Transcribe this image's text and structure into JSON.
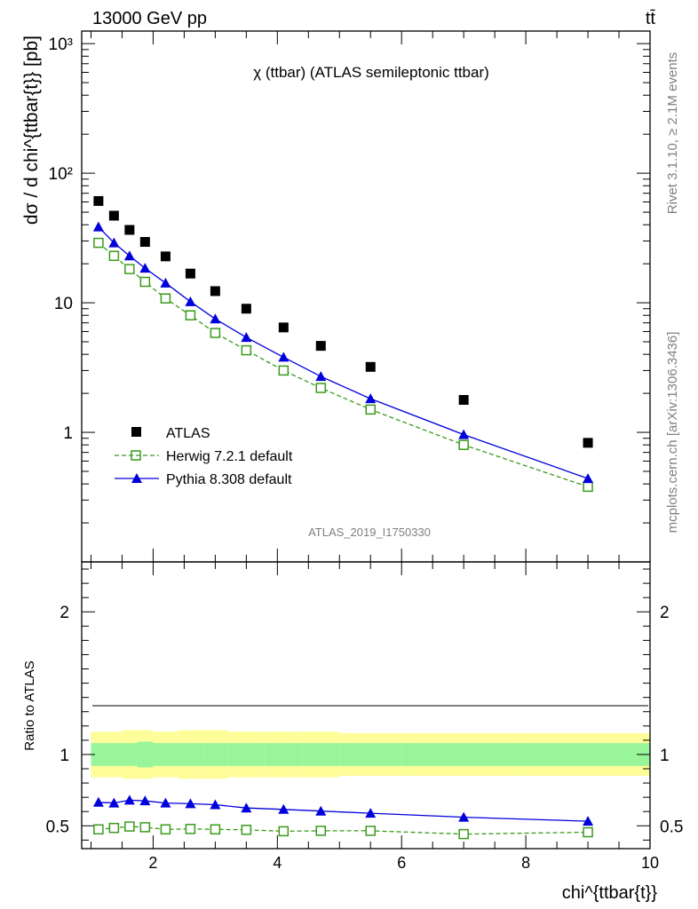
{
  "header": {
    "energy": "13000 GeV pp",
    "process": "tt̄"
  },
  "side": {
    "rivet": "Rivet 3.1.10, ≥ 2.1M events",
    "mcplots": "mcplots.cern.ch [arXiv:1306.3436]"
  },
  "analysis_id": "ATLAS_2019_I1750330",
  "chart_data": [
    {
      "type": "scatter",
      "title": "χ (ttbar) (ATLAS semileptonic ttbar)",
      "ylabel": "dσ / d chi^{ttbar{t}} [pb]",
      "xlabel": "chi^{ttbar{t}}",
      "yscale": "log",
      "xlim": [
        0.85,
        10
      ],
      "ylim": [
        0.1,
        1250
      ],
      "ytick_labels": [
        "1",
        "10",
        "10²",
        "10³"
      ],
      "legend": [
        {
          "name": "ATLAS",
          "color": "#000000"
        },
        {
          "name": "Herwig 7.2.1 default",
          "color": "#3a9a1a"
        },
        {
          "name": "Pythia 8.308 default",
          "color": "#0000dd"
        }
      ],
      "x": [
        1.12,
        1.37,
        1.62,
        1.87,
        2.2,
        2.6,
        3.0,
        3.5,
        4.1,
        4.7,
        5.5,
        7.0,
        9.0
      ],
      "series": [
        {
          "name": "ATLAS",
          "values": [
            61,
            47,
            36.5,
            29.5,
            22.8,
            16.8,
            12.3,
            9.0,
            6.45,
            4.65,
            3.2,
            1.78,
            0.83
          ]
        },
        {
          "name": "Herwig 7.2.1 default",
          "values": [
            29,
            23,
            18.2,
            14.5,
            10.8,
            8.0,
            5.85,
            4.3,
            3.0,
            2.2,
            1.5,
            0.8,
            0.38
          ]
        },
        {
          "name": "Pythia 8.308 default",
          "values": [
            38.5,
            29,
            23,
            18.5,
            14.2,
            10.2,
            7.5,
            5.4,
            3.8,
            2.7,
            1.82,
            0.96,
            0.44
          ]
        }
      ]
    },
    {
      "type": "line",
      "ylabel": "Ratio to ATLAS",
      "xlabel": "chi^{ttbar{t}}",
      "xlim": [
        0.85,
        10
      ],
      "ylim": [
        0.34,
        2.35
      ],
      "ytick_labels": [
        "0.5",
        "1",
        "2"
      ],
      "xtick_labels": [
        "2",
        "4",
        "6",
        "8",
        "10"
      ],
      "x": [
        1.12,
        1.37,
        1.62,
        1.87,
        2.2,
        2.6,
        3.0,
        3.5,
        4.1,
        4.7,
        5.5,
        7.0,
        9.0
      ],
      "bin_edges": [
        1.0,
        1.25,
        1.5,
        1.75,
        2.0,
        2.4,
        2.8,
        3.2,
        3.8,
        4.4,
        5.0,
        6.0,
        8.0,
        10.0
      ],
      "band_total": [
        0.16,
        0.16,
        0.17,
        0.17,
        0.16,
        0.17,
        0.17,
        0.16,
        0.16,
        0.16,
        0.15,
        0.15,
        0.15
      ],
      "band_stat": [
        0.08,
        0.08,
        0.08,
        0.09,
        0.08,
        0.08,
        0.08,
        0.08,
        0.08,
        0.08,
        0.08,
        0.08,
        0.08
      ],
      "series": [
        {
          "name": "Herwig 7.2.1 default",
          "values": [
            0.475,
            0.485,
            0.495,
            0.49,
            0.475,
            0.478,
            0.475,
            0.472,
            0.462,
            0.465,
            0.465,
            0.442,
            0.455
          ]
        },
        {
          "name": "Pythia 8.308 default",
          "values": [
            0.665,
            0.66,
            0.68,
            0.675,
            0.66,
            0.655,
            0.648,
            0.625,
            0.615,
            0.603,
            0.588,
            0.56,
            0.532
          ]
        }
      ]
    }
  ]
}
